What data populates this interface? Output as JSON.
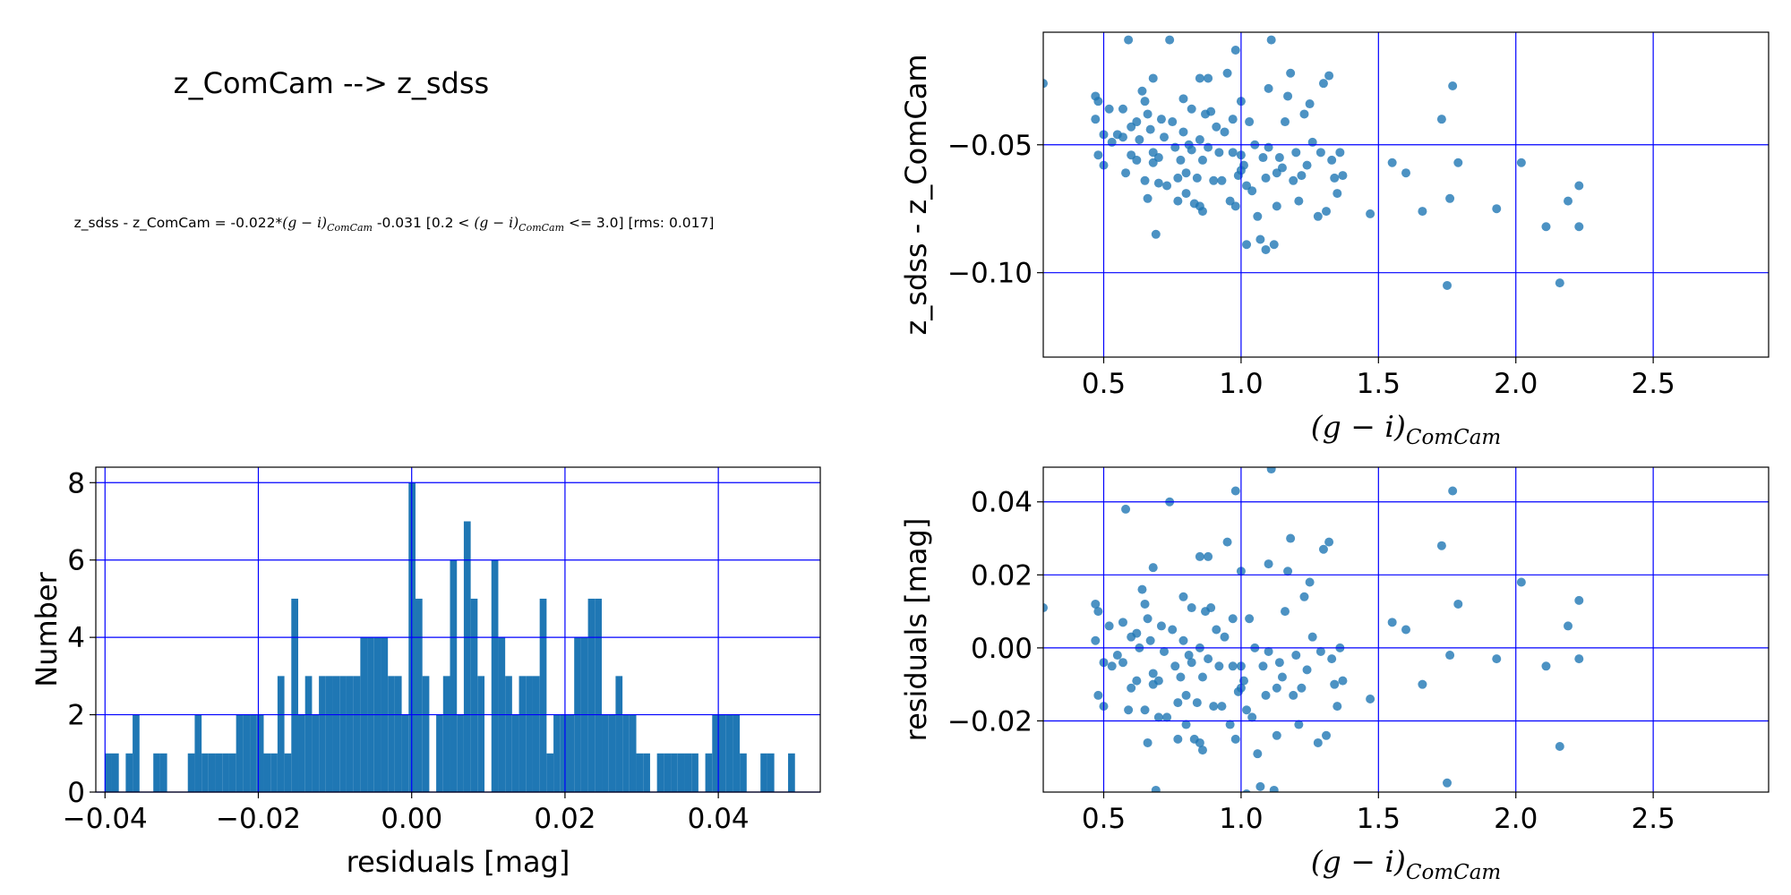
{
  "figure_title": "z_ComCam --> z_sdss",
  "equation": {
    "prefix": "z_sdss - z_ComCam = -0.022*",
    "slope_term_var": "(g − i)",
    "subscript": "ComCam",
    "intercept": " -0.031  [0.2 < ",
    "range_var": "(g − i)",
    "range_sub": "ComCam",
    "range_suffix": " <= 3.0]  [rms: 0.017]"
  },
  "colors": {
    "points": "#1f77b4",
    "bars": "#1f77b4",
    "grid": "#0000ff"
  },
  "chart_data": [
    {
      "id": "scatter-fit",
      "type": "scatter",
      "xlabel_main": "(g − i)",
      "xlabel_sub": "ComCam",
      "ylabel": "z_sdss - z_ComCam",
      "xlim": [
        0.28,
        2.92
      ],
      "ylim": [
        -0.133,
        -0.006
      ],
      "xticks": [
        0.5,
        1.0,
        1.5,
        2.0,
        2.5
      ],
      "xtick_labels": [
        "0.5",
        "1.0",
        "1.5",
        "2.0",
        "2.5"
      ],
      "yticks": [
        -0.05,
        -0.1
      ],
      "ytick_labels": [
        "−0.05",
        "−0.10"
      ],
      "grid": true,
      "points": [
        [
          0.28,
          -0.026
        ],
        [
          0.47,
          -0.031
        ],
        [
          0.48,
          -0.033
        ],
        [
          0.47,
          -0.04
        ],
        [
          0.5,
          -0.046
        ],
        [
          0.48,
          -0.054
        ],
        [
          0.5,
          -0.058
        ],
        [
          0.52,
          -0.036
        ],
        [
          0.53,
          -0.049
        ],
        [
          0.55,
          -0.046
        ],
        [
          0.57,
          -0.036
        ],
        [
          0.57,
          -0.047
        ],
        [
          0.58,
          -0.061
        ],
        [
          0.59,
          -0.009
        ],
        [
          0.6,
          -0.054
        ],
        [
          0.6,
          -0.043
        ],
        [
          0.62,
          -0.041
        ],
        [
          0.62,
          -0.056
        ],
        [
          0.63,
          -0.048
        ],
        [
          0.64,
          -0.029
        ],
        [
          0.65,
          -0.033
        ],
        [
          0.65,
          -0.064
        ],
        [
          0.66,
          -0.071
        ],
        [
          0.66,
          -0.038
        ],
        [
          0.67,
          -0.044
        ],
        [
          0.68,
          -0.053
        ],
        [
          0.68,
          -0.057
        ],
        [
          0.68,
          -0.024
        ],
        [
          0.69,
          -0.085
        ],
        [
          0.7,
          -0.065
        ],
        [
          0.7,
          -0.055
        ],
        [
          0.71,
          -0.04
        ],
        [
          0.72,
          -0.047
        ],
        [
          0.73,
          -0.066
        ],
        [
          0.74,
          -0.009
        ],
        [
          0.75,
          -0.041
        ],
        [
          0.76,
          -0.051
        ],
        [
          0.77,
          -0.063
        ],
        [
          0.77,
          -0.072
        ],
        [
          0.78,
          -0.056
        ],
        [
          0.79,
          -0.032
        ],
        [
          0.79,
          -0.045
        ],
        [
          0.8,
          -0.069
        ],
        [
          0.8,
          -0.061
        ],
        [
          0.81,
          -0.05
        ],
        [
          0.82,
          -0.052
        ],
        [
          0.82,
          -0.036
        ],
        [
          0.83,
          -0.073
        ],
        [
          0.84,
          -0.063
        ],
        [
          0.85,
          -0.074
        ],
        [
          0.85,
          -0.048
        ],
        [
          0.85,
          -0.024
        ],
        [
          0.86,
          -0.076
        ],
        [
          0.86,
          -0.056
        ],
        [
          0.87,
          -0.038
        ],
        [
          0.88,
          -0.051
        ],
        [
          0.88,
          -0.024
        ],
        [
          0.89,
          -0.037
        ],
        [
          0.9,
          -0.064
        ],
        [
          0.91,
          -0.043
        ],
        [
          0.92,
          -0.053
        ],
        [
          0.93,
          -0.064
        ],
        [
          0.94,
          -0.045
        ],
        [
          0.95,
          -0.022
        ],
        [
          0.96,
          -0.072
        ],
        [
          0.97,
          -0.04
        ],
        [
          0.97,
          -0.053
        ],
        [
          0.98,
          -0.013
        ],
        [
          0.98,
          -0.074
        ],
        [
          0.99,
          -0.062
        ],
        [
          1.0,
          -0.06
        ],
        [
          1.0,
          -0.054
        ],
        [
          1.0,
          -0.033
        ],
        [
          1.01,
          -0.058
        ],
        [
          1.02,
          -0.089
        ],
        [
          1.02,
          -0.066
        ],
        [
          1.03,
          -0.041
        ],
        [
          1.04,
          -0.068
        ],
        [
          1.05,
          -0.05
        ],
        [
          1.06,
          -0.078
        ],
        [
          1.07,
          -0.087
        ],
        [
          1.08,
          -0.055
        ],
        [
          1.09,
          -0.091
        ],
        [
          1.09,
          -0.063
        ],
        [
          1.1,
          -0.051
        ],
        [
          1.1,
          -0.028
        ],
        [
          1.11,
          -0.009
        ],
        [
          1.12,
          -0.089
        ],
        [
          1.13,
          -0.074
        ],
        [
          1.13,
          -0.061
        ],
        [
          1.14,
          -0.055
        ],
        [
          1.15,
          -0.059
        ],
        [
          1.16,
          -0.041
        ],
        [
          1.17,
          -0.031
        ],
        [
          1.18,
          -0.022
        ],
        [
          1.19,
          -0.064
        ],
        [
          1.2,
          -0.053
        ],
        [
          1.21,
          -0.072
        ],
        [
          1.22,
          -0.062
        ],
        [
          1.23,
          -0.038
        ],
        [
          1.24,
          -0.058
        ],
        [
          1.25,
          -0.034
        ],
        [
          1.26,
          -0.049
        ],
        [
          1.28,
          -0.078
        ],
        [
          1.29,
          -0.053
        ],
        [
          1.3,
          -0.026
        ],
        [
          1.31,
          -0.076
        ],
        [
          1.32,
          -0.023
        ],
        [
          1.33,
          -0.056
        ],
        [
          1.34,
          -0.063
        ],
        [
          1.35,
          -0.069
        ],
        [
          1.36,
          -0.053
        ],
        [
          1.37,
          -0.062
        ],
        [
          1.47,
          -0.077
        ],
        [
          1.55,
          -0.057
        ],
        [
          1.6,
          -0.061
        ],
        [
          1.66,
          -0.076
        ],
        [
          1.73,
          -0.04
        ],
        [
          1.75,
          -0.105
        ],
        [
          1.76,
          -0.071
        ],
        [
          1.77,
          -0.027
        ],
        [
          1.79,
          -0.057
        ],
        [
          1.93,
          -0.075
        ],
        [
          2.02,
          -0.057
        ],
        [
          2.11,
          -0.082
        ],
        [
          2.16,
          -0.104
        ],
        [
          2.19,
          -0.072
        ],
        [
          2.23,
          -0.082
        ],
        [
          2.23,
          -0.066
        ]
      ]
    },
    {
      "id": "residual-histogram",
      "type": "bar",
      "xlabel": "residuals [mag]",
      "ylabel": "Number",
      "xlim": [
        -0.0412,
        0.0533
      ],
      "ylim": [
        0,
        8.4
      ],
      "xticks": [
        -0.04,
        -0.02,
        0.0,
        0.02,
        0.04
      ],
      "xtick_labels": [
        "−0.04",
        "−0.02",
        "0.00",
        "0.02",
        "0.04"
      ],
      "yticks": [
        0,
        2,
        4,
        6,
        8
      ],
      "ytick_labels": [
        "0",
        "2",
        "4",
        "6",
        "8"
      ],
      "grid": true,
      "bin_start": -0.04,
      "bin_width": 0.0009,
      "counts": [
        1,
        1,
        0,
        1,
        2,
        0,
        0,
        1,
        1,
        0,
        0,
        0,
        1,
        2,
        1,
        1,
        1,
        1,
        1,
        2,
        2,
        2,
        2,
        1,
        1,
        3,
        1,
        5,
        2,
        3,
        2,
        3,
        3,
        3,
        3,
        3,
        3,
        4,
        4,
        4,
        4,
        3,
        3,
        2,
        8,
        5,
        3,
        0,
        2,
        3,
        6,
        2,
        7,
        5,
        3,
        0,
        6,
        4,
        3,
        2,
        3,
        3,
        3,
        5,
        1,
        2,
        2,
        2,
        4,
        4,
        5,
        5,
        2,
        2,
        3,
        2,
        2,
        1,
        1,
        0,
        1,
        1,
        1,
        1,
        1,
        1,
        0,
        1,
        2,
        2,
        2,
        2,
        1,
        0,
        0,
        1,
        1,
        0,
        0,
        1
      ]
    },
    {
      "id": "scatter-residuals",
      "type": "scatter",
      "xlabel_main": "(g − i)",
      "xlabel_sub": "ComCam",
      "ylabel": "residuals [mag]",
      "xlim": [
        0.28,
        2.92
      ],
      "ylim": [
        -0.0395,
        0.0495
      ],
      "xticks": [
        0.5,
        1.0,
        1.5,
        2.0,
        2.5
      ],
      "xtick_labels": [
        "0.5",
        "1.0",
        "1.5",
        "2.0",
        "2.5"
      ],
      "yticks": [
        0.04,
        0.02,
        0.0,
        -0.02
      ],
      "ytick_labels": [
        "0.04",
        "0.02",
        "0.00",
        "−0.02"
      ],
      "grid": true,
      "points": [
        [
          0.28,
          0.011
        ],
        [
          0.47,
          0.012
        ],
        [
          0.48,
          0.01
        ],
        [
          0.47,
          0.002
        ],
        [
          0.5,
          -0.004
        ],
        [
          0.48,
          -0.013
        ],
        [
          0.5,
          -0.016
        ],
        [
          0.52,
          0.006
        ],
        [
          0.53,
          -0.005
        ],
        [
          0.55,
          -0.002
        ],
        [
          0.57,
          0.007
        ],
        [
          0.57,
          -0.004
        ],
        [
          0.58,
          0.038
        ],
        [
          0.59,
          -0.017
        ],
        [
          0.6,
          -0.011
        ],
        [
          0.6,
          0.003
        ],
        [
          0.62,
          0.004
        ],
        [
          0.62,
          -0.009
        ],
        [
          0.63,
          0.0
        ],
        [
          0.64,
          0.016
        ],
        [
          0.65,
          0.012
        ],
        [
          0.65,
          -0.017
        ],
        [
          0.66,
          -0.026
        ],
        [
          0.66,
          0.008
        ],
        [
          0.67,
          0.002
        ],
        [
          0.68,
          -0.007
        ],
        [
          0.68,
          -0.01
        ],
        [
          0.68,
          0.022
        ],
        [
          0.69,
          -0.039
        ],
        [
          0.7,
          -0.019
        ],
        [
          0.7,
          -0.009
        ],
        [
          0.71,
          0.006
        ],
        [
          0.72,
          -0.001
        ],
        [
          0.73,
          -0.019
        ],
        [
          0.74,
          0.04
        ],
        [
          0.75,
          0.005
        ],
        [
          0.76,
          -0.005
        ],
        [
          0.77,
          -0.015
        ],
        [
          0.77,
          -0.025
        ],
        [
          0.78,
          -0.008
        ],
        [
          0.79,
          0.014
        ],
        [
          0.79,
          0.002
        ],
        [
          0.8,
          -0.021
        ],
        [
          0.8,
          -0.013
        ],
        [
          0.81,
          -0.002
        ],
        [
          0.82,
          -0.004
        ],
        [
          0.82,
          0.011
        ],
        [
          0.83,
          -0.025
        ],
        [
          0.84,
          -0.015
        ],
        [
          0.85,
          -0.026
        ],
        [
          0.85,
          0.0
        ],
        [
          0.85,
          0.025
        ],
        [
          0.86,
          -0.028
        ],
        [
          0.86,
          -0.008
        ],
        [
          0.87,
          0.01
        ],
        [
          0.88,
          -0.003
        ],
        [
          0.88,
          0.025
        ],
        [
          0.89,
          0.011
        ],
        [
          0.9,
          -0.016
        ],
        [
          0.91,
          0.005
        ],
        [
          0.92,
          -0.005
        ],
        [
          0.93,
          -0.016
        ],
        [
          0.94,
          0.003
        ],
        [
          0.95,
          0.029
        ],
        [
          0.96,
          -0.021
        ],
        [
          0.97,
          0.008
        ],
        [
          0.97,
          -0.005
        ],
        [
          0.98,
          0.043
        ],
        [
          0.98,
          -0.025
        ],
        [
          0.99,
          -0.012
        ],
        [
          1.0,
          -0.011
        ],
        [
          1.0,
          -0.005
        ],
        [
          1.0,
          0.021
        ],
        [
          1.01,
          -0.009
        ],
        [
          1.02,
          -0.04
        ],
        [
          1.02,
          -0.017
        ],
        [
          1.03,
          0.008
        ],
        [
          1.04,
          -0.019
        ],
        [
          1.05,
          0.0
        ],
        [
          1.06,
          -0.029
        ],
        [
          1.07,
          -0.038
        ],
        [
          1.08,
          -0.005
        ],
        [
          1.09,
          -0.042
        ],
        [
          1.09,
          -0.013
        ],
        [
          1.1,
          -0.001
        ],
        [
          1.1,
          0.023
        ],
        [
          1.11,
          0.049
        ],
        [
          1.12,
          -0.039
        ],
        [
          1.13,
          -0.024
        ],
        [
          1.13,
          -0.011
        ],
        [
          1.14,
          -0.004
        ],
        [
          1.15,
          -0.008
        ],
        [
          1.16,
          0.01
        ],
        [
          1.17,
          0.021
        ],
        [
          1.18,
          0.03
        ],
        [
          1.19,
          -0.013
        ],
        [
          1.2,
          -0.002
        ],
        [
          1.21,
          -0.021
        ],
        [
          1.22,
          -0.011
        ],
        [
          1.23,
          0.014
        ],
        [
          1.24,
          -0.006
        ],
        [
          1.25,
          0.018
        ],
        [
          1.26,
          0.003
        ],
        [
          1.28,
          -0.026
        ],
        [
          1.29,
          -0.001
        ],
        [
          1.3,
          0.027
        ],
        [
          1.31,
          -0.024
        ],
        [
          1.32,
          0.029
        ],
        [
          1.33,
          -0.003
        ],
        [
          1.34,
          -0.01
        ],
        [
          1.35,
          -0.016
        ],
        [
          1.36,
          0.0
        ],
        [
          1.37,
          -0.009
        ],
        [
          1.47,
          -0.014
        ],
        [
          1.55,
          0.007
        ],
        [
          1.6,
          0.005
        ],
        [
          1.66,
          -0.01
        ],
        [
          1.73,
          0.028
        ],
        [
          1.75,
          -0.037
        ],
        [
          1.76,
          -0.002
        ],
        [
          1.77,
          0.043
        ],
        [
          1.79,
          0.012
        ],
        [
          1.93,
          -0.003
        ],
        [
          2.02,
          0.018
        ],
        [
          2.11,
          -0.005
        ],
        [
          2.16,
          -0.027
        ],
        [
          2.19,
          0.006
        ],
        [
          2.23,
          -0.003
        ],
        [
          2.23,
          0.013
        ]
      ]
    }
  ]
}
